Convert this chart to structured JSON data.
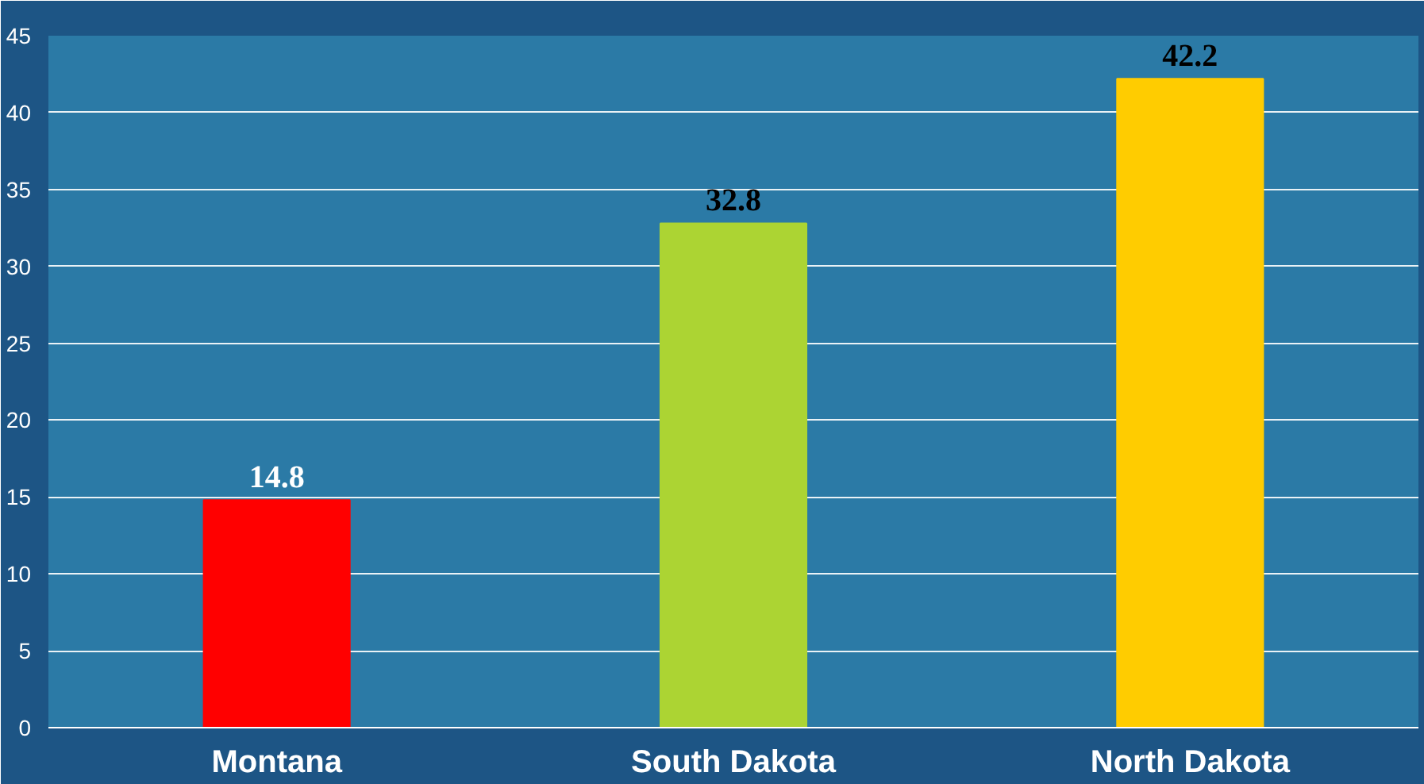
{
  "chart_data": {
    "type": "bar",
    "categories": [
      "Montana",
      "South Dakota",
      "North Dakota"
    ],
    "values": [
      14.8,
      32.8,
      42.2
    ],
    "colors": [
      "#ff0000",
      "#acd433",
      "#ffcc00"
    ],
    "ylim": [
      0,
      45
    ],
    "yticks": [
      0,
      5,
      10,
      15,
      20,
      25,
      30,
      35,
      40,
      45
    ],
    "grid": "y",
    "data_labels": true
  }
}
